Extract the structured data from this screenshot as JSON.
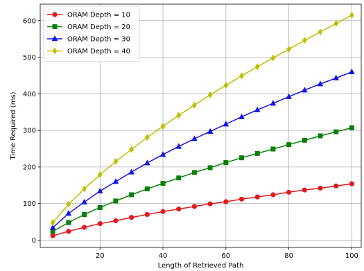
{
  "chart_data": {
    "type": "line",
    "title": "",
    "xlabel": "Length of Retrieved Path",
    "ylabel": "Time Required (ms)",
    "xlim": [
      1,
      103
    ],
    "ylim": [
      -20,
      645
    ],
    "xticks": [
      20,
      40,
      60,
      80,
      100
    ],
    "yticks": [
      0,
      100,
      200,
      300,
      400,
      500,
      600
    ],
    "grid": true,
    "legend_position": "top-left",
    "x": [
      5,
      10,
      15,
      20,
      25,
      30,
      35,
      40,
      45,
      50,
      55,
      60,
      65,
      70,
      75,
      80,
      85,
      90,
      95,
      100
    ],
    "series": [
      {
        "name": "ORAM Depth = 10",
        "color": "#e31a1c",
        "marker": "circle",
        "values": [
          12,
          24,
          35,
          45,
          53,
          62,
          70,
          78,
          85,
          92,
          99,
          105,
          112,
          118,
          124,
          131,
          137,
          142,
          148,
          154
        ]
      },
      {
        "name": "ORAM Depth = 20",
        "color": "#0a7f0a",
        "marker": "square",
        "values": [
          24,
          48,
          70,
          89,
          107,
          124,
          140,
          155,
          170,
          185,
          198,
          212,
          225,
          237,
          249,
          261,
          273,
          285,
          296,
          307
        ]
      },
      {
        "name": "ORAM Depth = 30",
        "color": "#1414e6",
        "marker": "triangle",
        "values": [
          34,
          73,
          104,
          134,
          160,
          186,
          211,
          234,
          256,
          277,
          297,
          317,
          337,
          356,
          374,
          392,
          410,
          427,
          443,
          460
        ]
      },
      {
        "name": "ORAM Depth = 40",
        "color": "#bfbf00",
        "marker": "diamond",
        "values": [
          48,
          98,
          140,
          179,
          215,
          248,
          281,
          311,
          341,
          369,
          397,
          423,
          449,
          474,
          498,
          522,
          546,
          569,
          592,
          615
        ]
      }
    ]
  }
}
